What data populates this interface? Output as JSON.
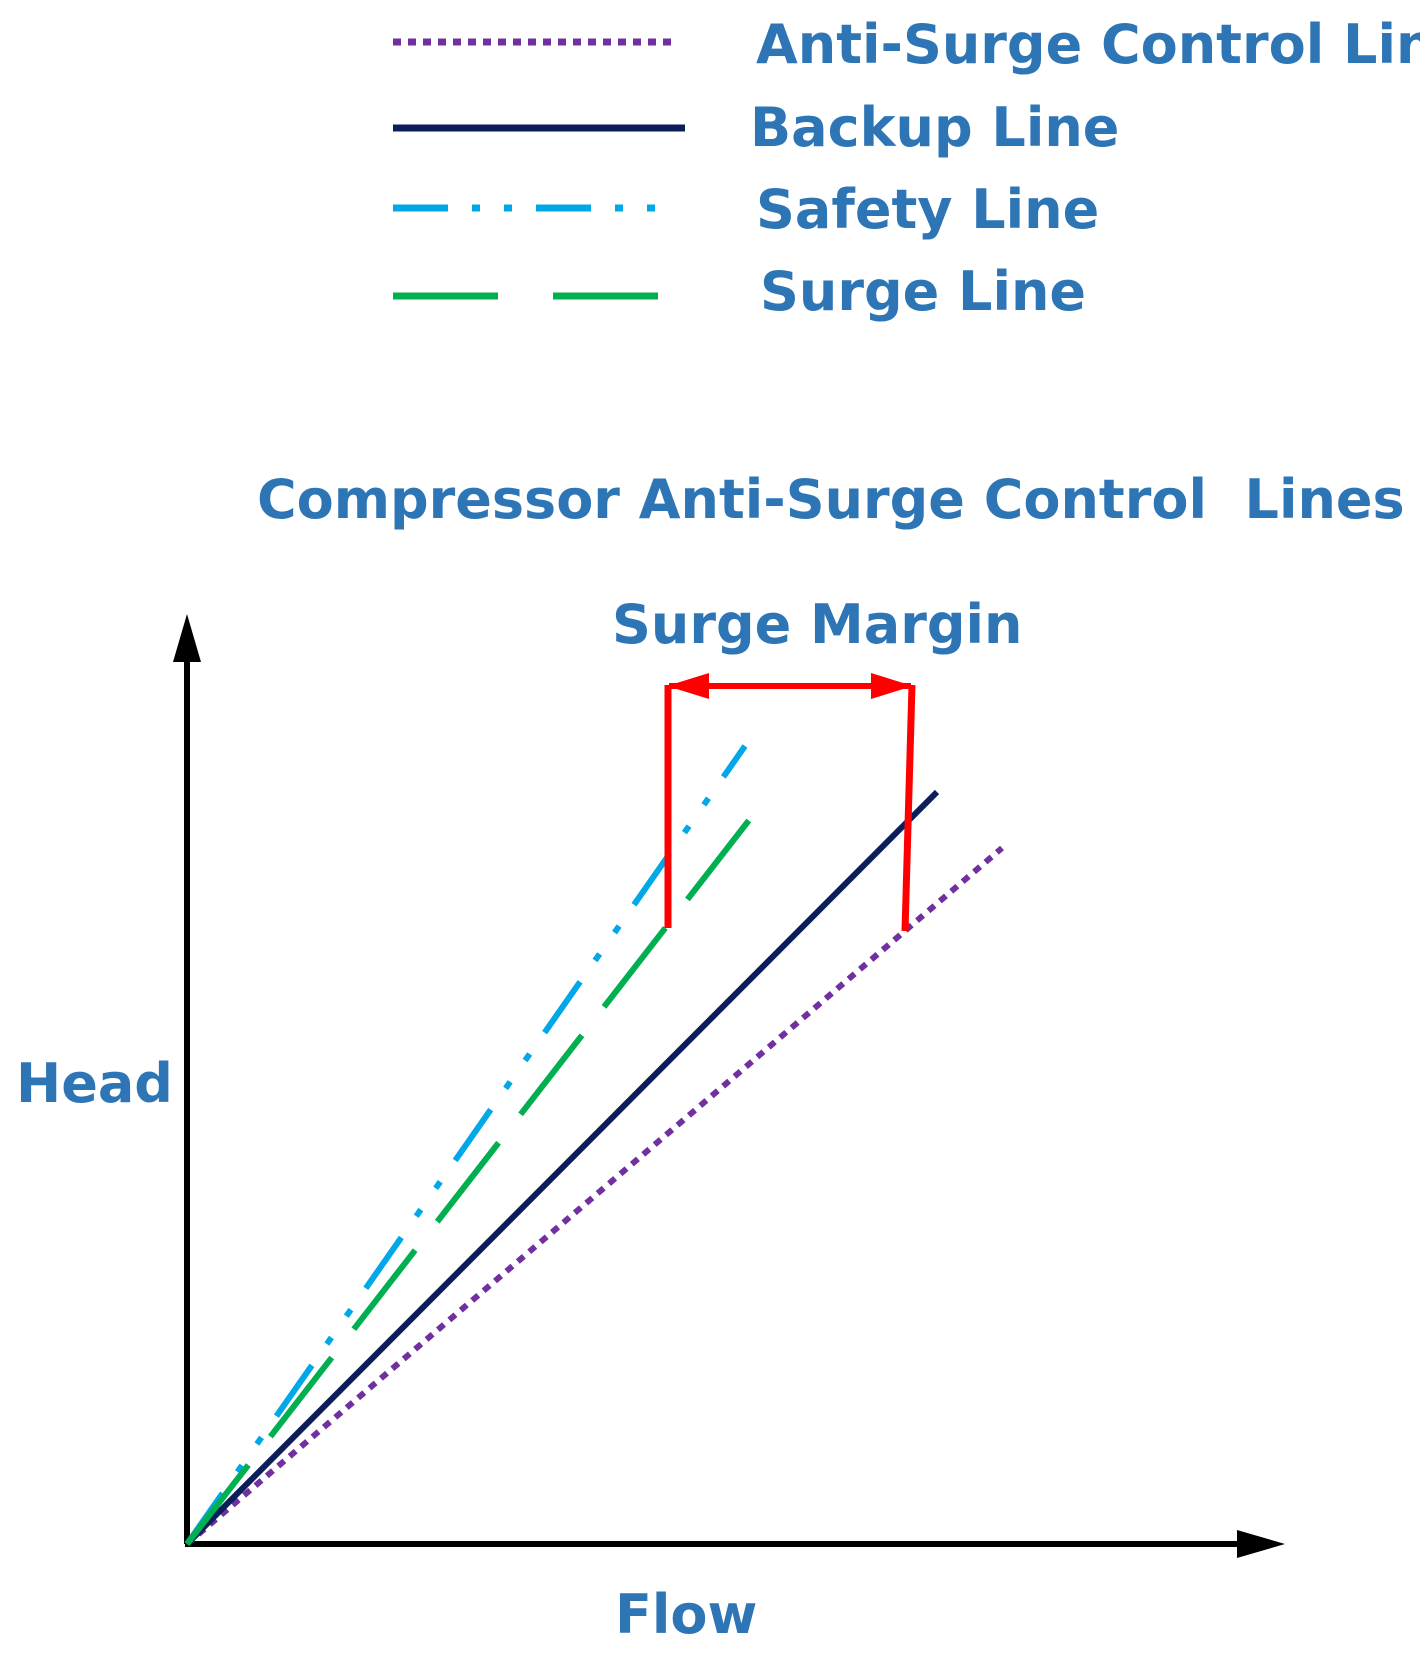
{
  "colors": {
    "text": "#2E75B6",
    "anti_surge": "#7030A0",
    "backup": "#0B1E5B",
    "safety": "#00A8E8",
    "surge": "#00B050",
    "margin": "#FF0000",
    "axis": "#000000"
  },
  "legend": {
    "items": [
      {
        "key": "anti_surge",
        "label": "Anti-Surge Control Line"
      },
      {
        "key": "backup",
        "label": "Backup Line"
      },
      {
        "key": "safety",
        "label": "Safety Line"
      },
      {
        "key": "surge",
        "label": "Surge Line"
      }
    ]
  },
  "diagram": {
    "title": "Compressor Anti-Surge Control  Lines",
    "margin_label": "Surge Margin",
    "y_axis_label": "Head",
    "x_axis_label": "Flow"
  }
}
